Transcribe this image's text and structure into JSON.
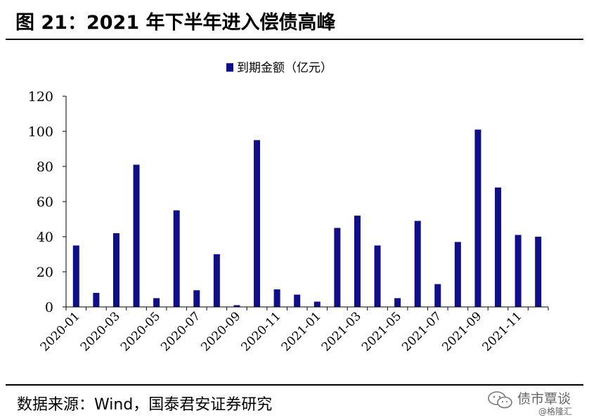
{
  "figure": {
    "title": "图 21：2021 年下半年进入偿债高峰",
    "source": "数据来源：Wind，国泰君安证券研究"
  },
  "watermark": {
    "text": "债市覃谈",
    "handle": "@格隆汇",
    "icon": "wechat-bubble-icon"
  },
  "chart_data": {
    "type": "bar",
    "categories": [
      "2020-01",
      "2020-02",
      "2020-03",
      "2020-04",
      "2020-05",
      "2020-06",
      "2020-07",
      "2020-08",
      "2020-09",
      "2020-10",
      "2020-11",
      "2020-12",
      "2021-01",
      "2021-02",
      "2021-03",
      "2021-04",
      "2021-05",
      "2021-06",
      "2021-07",
      "2021-08",
      "2021-09",
      "2021-10",
      "2021-11",
      "2021-12"
    ],
    "tick_labels": [
      "2020-01",
      "2020-03",
      "2020-05",
      "2020-07",
      "2020-09",
      "2020-11",
      "2021-01",
      "2021-03",
      "2021-05",
      "2021-07",
      "2021-09",
      "2021-11"
    ],
    "series": [
      {
        "name": "到期金额（亿元）",
        "color": "#0f0f8c",
        "values": [
          35,
          8,
          42,
          81,
          5,
          55,
          9.5,
          30,
          1,
          95,
          10,
          7,
          3,
          45,
          52,
          35,
          5,
          49,
          13,
          37,
          101,
          68,
          41,
          40
        ]
      }
    ],
    "ylim": [
      0,
      120
    ],
    "yticks": [
      0,
      20,
      40,
      60,
      80,
      100,
      120
    ],
    "legend_position": "top-center",
    "grid": false
  }
}
